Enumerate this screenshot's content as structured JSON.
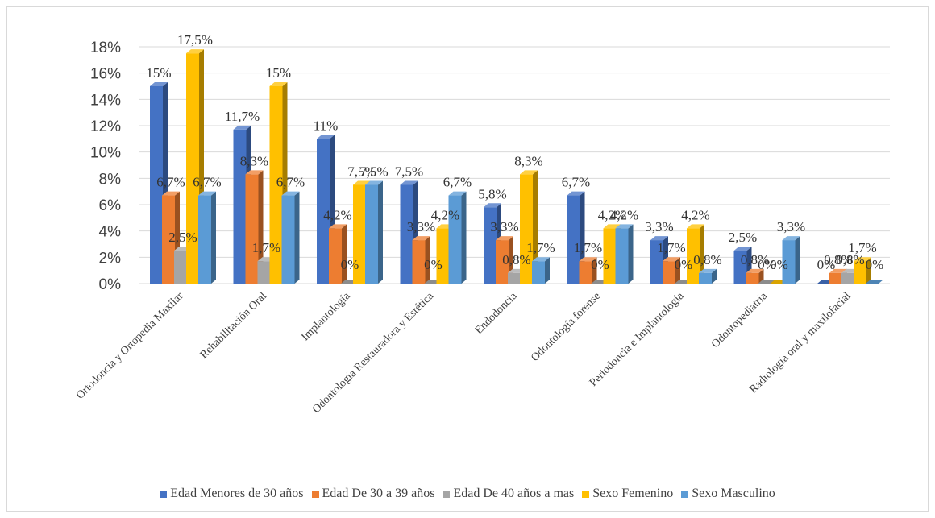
{
  "chart_data": {
    "type": "bar",
    "style": "3d-clustered-column",
    "categories": [
      "Ortodoncia y Ortopedia Maxilar",
      "Rehabilitación Oral",
      "Implantología",
      "Odontología Restauradora y Estética",
      "Endodoncia",
      "Odontología forense",
      "Periodoncia e Implantología",
      "Odontopediatría",
      "Radiología oral y maxilofacial"
    ],
    "series": [
      {
        "name": "Edad Menores de 30 años",
        "color": "#4472C4",
        "values": [
          15,
          11.7,
          11,
          7.5,
          5.8,
          6.7,
          3.3,
          2.5,
          0
        ],
        "labels": [
          "15%",
          "11,7%",
          "11%",
          "7,5%",
          "5,8%",
          "6,7%",
          "3,3%",
          "2,5%",
          "0%"
        ]
      },
      {
        "name": "Edad De 30 a 39 años",
        "color": "#ED7D31",
        "values": [
          6.7,
          8.3,
          4.2,
          3.3,
          3.3,
          1.7,
          1.7,
          0.8,
          0.8
        ],
        "labels": [
          "6,7%",
          "8,3%",
          "4,2%",
          "3,3%",
          "3,3%",
          "1,7%",
          "1,7%",
          "0,8%",
          "0,8%"
        ]
      },
      {
        "name": "Edad De 40 años a mas",
        "color": "#A5A5A5",
        "values": [
          2.5,
          1.7,
          0,
          0,
          0.8,
          0,
          0,
          0,
          0.8
        ],
        "labels": [
          "2,5%",
          "1,7%",
          "0%",
          "0%",
          "0,8%",
          "0%",
          "0%",
          "0%",
          "0,8%"
        ]
      },
      {
        "name": "Sexo Femenino",
        "color": "#FFC000",
        "values": [
          17.5,
          15,
          7.5,
          4.2,
          8.3,
          4.2,
          4.2,
          0,
          1.7
        ],
        "labels": [
          "17,5%",
          "15%",
          "7,5%",
          "4,2%",
          "8,3%",
          "4,2%",
          "4,2%",
          "0%",
          "1,7%"
        ]
      },
      {
        "name": "Sexo Masculino",
        "color": "#5B9BD5",
        "values": [
          6.7,
          6.7,
          7.5,
          6.7,
          1.7,
          4.2,
          0.8,
          3.3,
          0
        ],
        "labels": [
          "6,7%",
          "6,7%",
          "7,5%",
          "6,7%",
          "1,7%",
          "4,2%",
          "0,8%",
          "3,3%",
          "0%"
        ]
      }
    ],
    "yticks": [
      "0%",
      "2%",
      "4%",
      "6%",
      "8%",
      "10%",
      "12%",
      "14%",
      "16%",
      "18%"
    ],
    "ylim": [
      0,
      18
    ],
    "grid": true,
    "legend_position": "bottom"
  }
}
